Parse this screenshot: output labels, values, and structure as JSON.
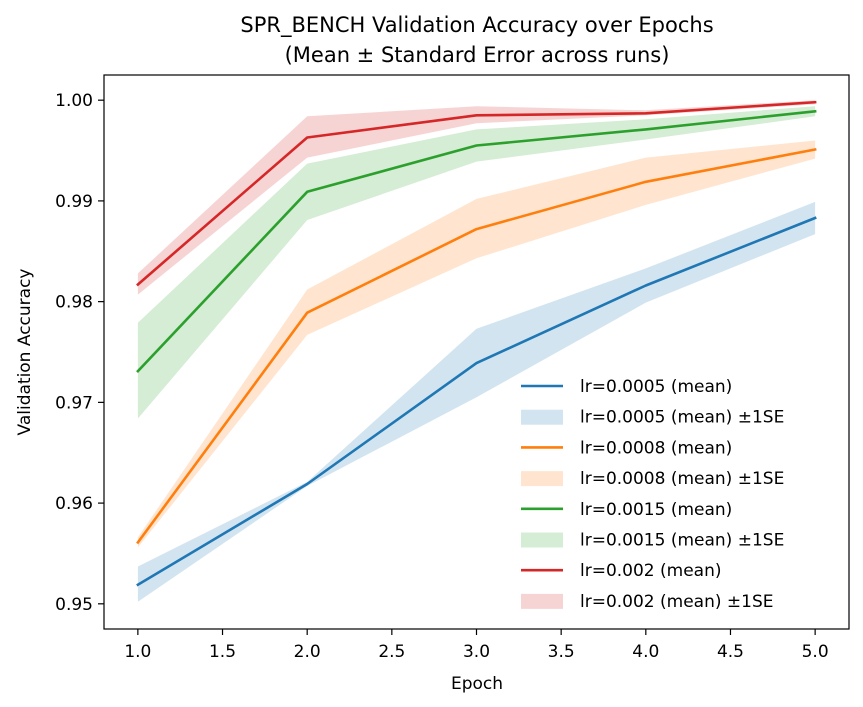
{
  "chart_data": {
    "type": "line",
    "title": "SPR_BENCH Validation Accuracy over Epochs",
    "subtitle": "(Mean ± Standard Error across runs)",
    "xlabel": "Epoch",
    "ylabel": "Validation Accuracy",
    "xlim": [
      0.8,
      5.2
    ],
    "ylim": [
      0.9475,
      1.0025
    ],
    "xticks": [
      1.0,
      1.5,
      2.0,
      2.5,
      3.0,
      3.5,
      4.0,
      4.5,
      5.0
    ],
    "xtick_labels": [
      "1.0",
      "1.5",
      "2.0",
      "2.5",
      "3.0",
      "3.5",
      "4.0",
      "4.5",
      "5.0"
    ],
    "yticks": [
      0.95,
      0.96,
      0.97,
      0.98,
      0.99,
      1.0
    ],
    "ytick_labels": [
      "0.95",
      "0.96",
      "0.97",
      "0.98",
      "0.99",
      "1.00"
    ],
    "grid": false,
    "legend_position": "lower-right",
    "x": [
      1,
      2,
      3,
      4,
      5
    ],
    "series": [
      {
        "name": "lr=0.0005 (mean)",
        "band_label": "lr=0.0005 (mean) ±1SE",
        "color": "#1f77b4",
        "values": [
          0.9519,
          0.9619,
          0.9739,
          0.9816,
          0.9883
        ],
        "lower": [
          0.9502,
          0.9617,
          0.9705,
          0.9799,
          0.9867
        ],
        "upper": [
          0.9537,
          0.9621,
          0.9773,
          0.9833,
          0.9899
        ]
      },
      {
        "name": "lr=0.0008 (mean)",
        "band_label": "lr=0.0008 (mean) ±1SE",
        "color": "#ff7f0e",
        "values": [
          0.9561,
          0.9789,
          0.9872,
          0.9919,
          0.9951
        ],
        "lower": [
          0.9556,
          0.9767,
          0.9843,
          0.9896,
          0.9942
        ],
        "upper": [
          0.9566,
          0.9812,
          0.9902,
          0.9943,
          0.996
        ]
      },
      {
        "name": "lr=0.0015 (mean)",
        "band_label": "lr=0.0015 (mean) ±1SE",
        "color": "#2ca02c",
        "values": [
          0.9731,
          0.9909,
          0.9955,
          0.9971,
          0.9989
        ],
        "lower": [
          0.9684,
          0.9881,
          0.9939,
          0.9961,
          0.9984
        ],
        "upper": [
          0.9779,
          0.9937,
          0.9971,
          0.9981,
          0.9994
        ]
      },
      {
        "name": "lr=0.002 (mean)",
        "band_label": "lr=0.002 (mean) ±1SE",
        "color": "#d62728",
        "values": [
          0.9817,
          0.9963,
          0.9985,
          0.9987,
          0.9998
        ],
        "lower": [
          0.9807,
          0.9943,
          0.9977,
          0.9985,
          0.9996
        ],
        "upper": [
          0.9828,
          0.9984,
          0.9994,
          0.999,
          1.0
        ]
      }
    ]
  }
}
